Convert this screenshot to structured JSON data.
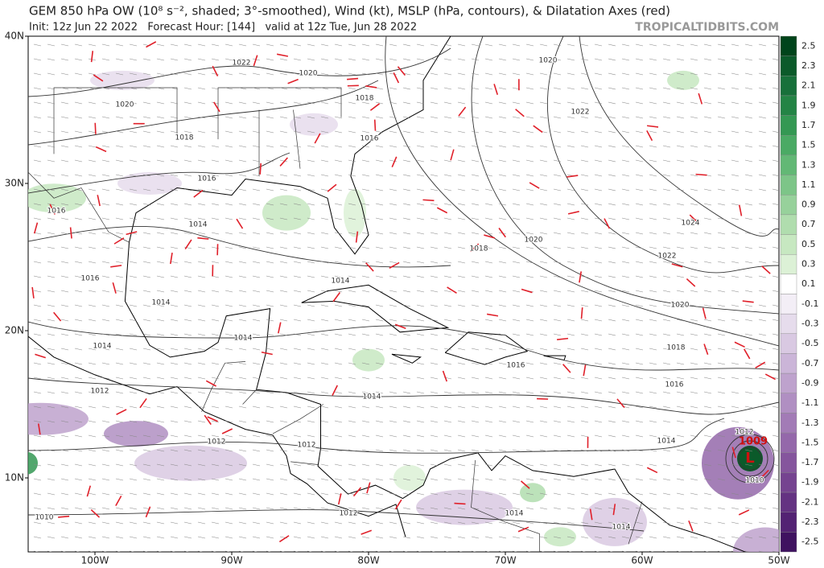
{
  "header": {
    "title": "GEM 850 hPa OW (10⁸ s⁻², shaded; 3°-smoothed), Wind (kt), MSLP (hPa, contours), & Dilatation Axes (red)",
    "subtitle": "Init: 12z Jun 22 2022   Forecast Hour: [144]   valid at 12z Tue, Jun 28 2022",
    "brand": "TROPICALTIDBITS.COM"
  },
  "map": {
    "lat_labels": [
      "40N",
      "30N",
      "20N",
      "10N"
    ],
    "lon_labels": [
      "100W",
      "90W",
      "80W",
      "70W",
      "60W",
      "50W"
    ],
    "isobar_labels": [
      "1022",
      "1020",
      "1020",
      "1018",
      "1018",
      "1016",
      "1016",
      "1016",
      "1014",
      "1016",
      "1014",
      "1014",
      "1014",
      "1014",
      "1012",
      "1012",
      "1012",
      "1014",
      "1012",
      "1014",
      "1014",
      "1010",
      "1014",
      "1016",
      "1016",
      "1018",
      "1020",
      "1022",
      "1024",
      "1020",
      "1018",
      "1022",
      "1020",
      "1012",
      "1010"
    ],
    "low": {
      "pressure": "1009",
      "symbol": "L"
    }
  },
  "colorbar": {
    "labels": [
      2.5,
      2.3,
      2.1,
      1.9,
      1.7,
      1.5,
      1.3,
      1.1,
      0.9,
      0.7,
      0.5,
      0.3,
      0.1,
      -0.1,
      -0.3,
      -0.5,
      -0.7,
      -0.9,
      -1.1,
      -1.3,
      -1.5,
      -1.7,
      -1.9,
      -2.1,
      -2.3,
      -2.5
    ],
    "colors": [
      "#00441b",
      "#0b5a2a",
      "#17703a",
      "#238445",
      "#349853",
      "#4aaa64",
      "#62b875",
      "#7dc588",
      "#97d19b",
      "#b0ddae",
      "#c7e8c1",
      "#dcf1d6",
      "#ffffff",
      "#f3eef6",
      "#e6dcec",
      "#d9c9e2",
      "#cbb5d8",
      "#bea2cd",
      "#b08fc2",
      "#a27bb6",
      "#9468aa",
      "#85559d",
      "#754390",
      "#643282",
      "#532273",
      "#3f1260"
    ]
  }
}
